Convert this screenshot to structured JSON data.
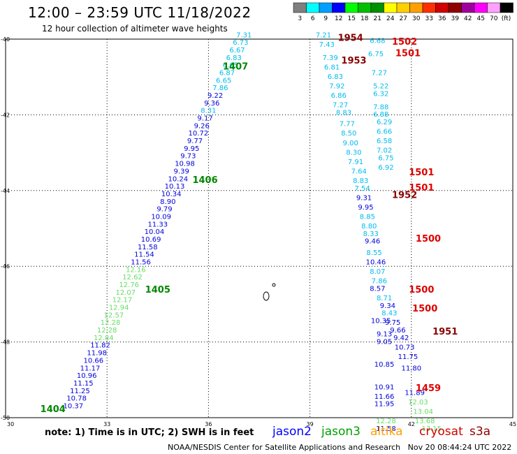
{
  "title": "12:00 – 23:59 UTC 11/18/2022",
  "subtitle": "12 hour collection of altimeter wave heights",
  "note": "note: 1) Time is in UTC; 2) SWH is in feet",
  "credit": "NOAA/NESDIS Center for Satellite Applications and Research   Nov 20 08:44:24 UTC 2022",
  "colorbar": {
    "unit": "(ft)",
    "bins": [
      {
        "label": "3",
        "color": "#7f7f7f"
      },
      {
        "label": "6",
        "color": "#00ffff"
      },
      {
        "label": "9",
        "color": "#00a0ff"
      },
      {
        "label": "12",
        "color": "#0000ff"
      },
      {
        "label": "15",
        "color": "#00ff00"
      },
      {
        "label": "18",
        "color": "#00c000"
      },
      {
        "label": "21",
        "color": "#009000"
      },
      {
        "label": "24",
        "color": "#ffff00"
      },
      {
        "label": "27",
        "color": "#ffd000"
      },
      {
        "label": "30",
        "color": "#ffa000"
      },
      {
        "label": "33",
        "color": "#ff3000"
      },
      {
        "label": "36",
        "color": "#d00000"
      },
      {
        "label": "39",
        "color": "#900000"
      },
      {
        "label": "42",
        "color": "#a000a0"
      },
      {
        "label": "45",
        "color": "#ff00ff"
      },
      {
        "label": "70",
        "color": "#ffa0ff"
      },
      {
        "label": "",
        "color": "#000000"
      }
    ]
  },
  "axes": {
    "lon_ticks": [
      "30",
      "33",
      "36",
      "39",
      "42",
      "45"
    ],
    "lat_ticks": [
      "-40",
      "-42",
      "-44",
      "-46",
      "-48",
      "-50"
    ],
    "lon_range": [
      30,
      45
    ],
    "lat_range": [
      -40,
      -50
    ]
  },
  "satellites": [
    {
      "name": "jason2",
      "color": "#0000ff"
    },
    {
      "name": "jason3",
      "color": "#00a000"
    },
    {
      "name": "altika",
      "color": "#ffa000"
    },
    {
      "name": "cryosat",
      "color": "#d00000"
    },
    {
      "name": "s3a",
      "color": "#900000"
    }
  ],
  "colors": {
    "c_cyan": "#00bbee",
    "c_blue": "#0000dd",
    "c_lgreen": "#66dd66",
    "c_green": "#008800",
    "c_red": "#dd0000",
    "c_dred": "#880000"
  },
  "chart_data": {
    "type": "scatter",
    "title": "12:00 – 23:59 UTC 11/18/2022",
    "xlim": [
      30,
      45
    ],
    "ylim": [
      -50,
      -40
    ],
    "grid": true,
    "points": [
      {
        "lon": 37.05,
        "lat": -39.95,
        "v": "7.31",
        "c": "c_cyan"
      },
      {
        "lon": 36.95,
        "lat": -40.15,
        "v": "6.73",
        "c": "c_cyan"
      },
      {
        "lon": 36.85,
        "lat": -40.35,
        "v": "6.67",
        "c": "c_cyan"
      },
      {
        "lon": 36.75,
        "lat": -40.55,
        "v": "6.83",
        "c": "c_cyan"
      },
      {
        "lon": 36.65,
        "lat": -40.75,
        "v": "6.65",
        "c": "c_cyan"
      },
      {
        "lon": 36.55,
        "lat": -40.95,
        "v": "6.87",
        "c": "c_cyan"
      },
      {
        "lon": 36.45,
        "lat": -41.15,
        "v": "6.65",
        "c": "c_cyan"
      },
      {
        "lon": 36.35,
        "lat": -41.35,
        "v": "7.86",
        "c": "c_cyan"
      },
      {
        "lon": 36.2,
        "lat": -41.55,
        "v": "9.22",
        "c": "c_blue"
      },
      {
        "lon": 36.1,
        "lat": -41.75,
        "v": "9.36",
        "c": "c_blue"
      },
      {
        "lon": 36.0,
        "lat": -41.95,
        "v": "8.31",
        "c": "c_cyan"
      },
      {
        "lon": 35.9,
        "lat": -42.15,
        "v": "9.17",
        "c": "c_blue"
      },
      {
        "lon": 35.8,
        "lat": -42.35,
        "v": "9.26",
        "c": "c_blue"
      },
      {
        "lon": 35.7,
        "lat": -42.55,
        "v": "10.72",
        "c": "c_blue"
      },
      {
        "lon": 35.6,
        "lat": -42.75,
        "v": "9.77",
        "c": "c_blue"
      },
      {
        "lon": 35.5,
        "lat": -42.95,
        "v": "9.95",
        "c": "c_blue"
      },
      {
        "lon": 35.4,
        "lat": -43.15,
        "v": "9.73",
        "c": "c_blue"
      },
      {
        "lon": 35.3,
        "lat": -43.35,
        "v": "10.98",
        "c": "c_blue"
      },
      {
        "lon": 35.2,
        "lat": -43.55,
        "v": "9.39",
        "c": "c_blue"
      },
      {
        "lon": 35.1,
        "lat": -43.75,
        "v": "10.24",
        "c": "c_blue"
      },
      {
        "lon": 35.0,
        "lat": -43.95,
        "v": "10.13",
        "c": "c_blue"
      },
      {
        "lon": 34.9,
        "lat": -44.15,
        "v": "10.34",
        "c": "c_blue"
      },
      {
        "lon": 34.8,
        "lat": -44.35,
        "v": "8.90",
        "c": "c_blue"
      },
      {
        "lon": 34.7,
        "lat": -44.55,
        "v": "9.79",
        "c": "c_blue"
      },
      {
        "lon": 34.6,
        "lat": -44.75,
        "v": "10.09",
        "c": "c_blue"
      },
      {
        "lon": 34.5,
        "lat": -44.95,
        "v": "11.33",
        "c": "c_blue"
      },
      {
        "lon": 34.4,
        "lat": -45.15,
        "v": "10.04",
        "c": "c_blue"
      },
      {
        "lon": 34.3,
        "lat": -45.35,
        "v": "10.69",
        "c": "c_blue"
      },
      {
        "lon": 34.2,
        "lat": -45.55,
        "v": "11.58",
        "c": "c_blue"
      },
      {
        "lon": 34.1,
        "lat": -45.75,
        "v": "11.54",
        "c": "c_blue"
      },
      {
        "lon": 34.0,
        "lat": -45.95,
        "v": "11.56",
        "c": "c_blue"
      },
      {
        "lon": 33.85,
        "lat": -46.15,
        "v": "12.16",
        "c": "c_lgreen"
      },
      {
        "lon": 33.75,
        "lat": -46.35,
        "v": "12.62",
        "c": "c_lgreen"
      },
      {
        "lon": 33.65,
        "lat": -46.55,
        "v": "12.76",
        "c": "c_lgreen"
      },
      {
        "lon": 33.55,
        "lat": -46.75,
        "v": "12.07",
        "c": "c_lgreen"
      },
      {
        "lon": 33.45,
        "lat": -46.95,
        "v": "12.17",
        "c": "c_lgreen"
      },
      {
        "lon": 33.35,
        "lat": -47.15,
        "v": "12.94",
        "c": "c_lgreen"
      },
      {
        "lon": 33.2,
        "lat": -47.35,
        "v": "12.57",
        "c": "c_lgreen"
      },
      {
        "lon": 33.1,
        "lat": -47.55,
        "v": "12.28",
        "c": "c_lgreen"
      },
      {
        "lon": 33.0,
        "lat": -47.75,
        "v": "12.28",
        "c": "c_lgreen"
      },
      {
        "lon": 32.9,
        "lat": -47.95,
        "v": "12.84",
        "c": "c_lgreen"
      },
      {
        "lon": 32.8,
        "lat": -48.15,
        "v": "11.82",
        "c": "c_blue"
      },
      {
        "lon": 32.7,
        "lat": -48.35,
        "v": "11.98",
        "c": "c_blue"
      },
      {
        "lon": 32.6,
        "lat": -48.55,
        "v": "10.66",
        "c": "c_blue"
      },
      {
        "lon": 32.5,
        "lat": -48.75,
        "v": "11.17",
        "c": "c_blue"
      },
      {
        "lon": 32.4,
        "lat": -48.95,
        "v": "10.96",
        "c": "c_blue"
      },
      {
        "lon": 32.3,
        "lat": -49.15,
        "v": "11.15",
        "c": "c_blue"
      },
      {
        "lon": 32.2,
        "lat": -49.35,
        "v": "11.25",
        "c": "c_blue"
      },
      {
        "lon": 32.1,
        "lat": -49.55,
        "v": "10.78",
        "c": "c_blue"
      },
      {
        "lon": 32.0,
        "lat": -49.75,
        "v": "10.37",
        "c": "c_blue"
      },
      {
        "lon": 39.4,
        "lat": -39.95,
        "v": "7.21",
        "c": "c_cyan"
      },
      {
        "lon": 39.5,
        "lat": -40.2,
        "v": "7.43",
        "c": "c_cyan"
      },
      {
        "lon": 39.6,
        "lat": -40.55,
        "v": "7.39",
        "c": "c_cyan"
      },
      {
        "lon": 39.65,
        "lat": -40.8,
        "v": "6.81",
        "c": "c_cyan"
      },
      {
        "lon": 39.75,
        "lat": -41.05,
        "v": "6.83",
        "c": "c_cyan"
      },
      {
        "lon": 39.8,
        "lat": -41.3,
        "v": "7.92",
        "c": "c_cyan"
      },
      {
        "lon": 39.85,
        "lat": -41.55,
        "v": "6.86",
        "c": "c_cyan"
      },
      {
        "lon": 39.9,
        "lat": -41.8,
        "v": "7.27",
        "c": "c_cyan"
      },
      {
        "lon": 40.0,
        "lat": -42.0,
        "v": "8.83",
        "c": "c_cyan"
      },
      {
        "lon": 40.1,
        "lat": -42.3,
        "v": "7.77",
        "c": "c_cyan"
      },
      {
        "lon": 40.15,
        "lat": -42.55,
        "v": "8.50",
        "c": "c_cyan"
      },
      {
        "lon": 40.2,
        "lat": -42.8,
        "v": "9.00",
        "c": "c_cyan"
      },
      {
        "lon": 40.3,
        "lat": -43.05,
        "v": "8.30",
        "c": "c_cyan"
      },
      {
        "lon": 40.35,
        "lat": -43.3,
        "v": "7.91",
        "c": "c_cyan"
      },
      {
        "lon": 40.45,
        "lat": -43.55,
        "v": "7.64",
        "c": "c_cyan"
      },
      {
        "lon": 40.5,
        "lat": -43.8,
        "v": "8.83",
        "c": "c_cyan"
      },
      {
        "lon": 40.55,
        "lat": -44.0,
        "v": "7.54",
        "c": "c_cyan"
      },
      {
        "lon": 40.6,
        "lat": -44.25,
        "v": "9.31",
        "c": "c_blue"
      },
      {
        "lon": 40.65,
        "lat": -44.5,
        "v": "9.95",
        "c": "c_blue"
      },
      {
        "lon": 40.7,
        "lat": -44.75,
        "v": "8.85",
        "c": "c_cyan"
      },
      {
        "lon": 40.75,
        "lat": -45.0,
        "v": "8.80",
        "c": "c_cyan"
      },
      {
        "lon": 40.8,
        "lat": -45.2,
        "v": "8.33",
        "c": "c_cyan"
      },
      {
        "lon": 40.85,
        "lat": -45.4,
        "v": "9.46",
        "c": "c_blue"
      },
      {
        "lon": 40.9,
        "lat": -45.7,
        "v": "8.55",
        "c": "c_cyan"
      },
      {
        "lon": 40.95,
        "lat": -45.95,
        "v": "10.46",
        "c": "c_blue"
      },
      {
        "lon": 41.0,
        "lat": -46.2,
        "v": "8.07",
        "c": "c_cyan"
      },
      {
        "lon": 41.05,
        "lat": -46.45,
        "v": "7.86",
        "c": "c_cyan"
      },
      {
        "lon": 41.0,
        "lat": -46.65,
        "v": "8.57",
        "c": "c_blue"
      },
      {
        "lon": 41.2,
        "lat": -46.9,
        "v": "8.71",
        "c": "c_cyan"
      },
      {
        "lon": 41.3,
        "lat": -47.1,
        "v": "9.34",
        "c": "c_blue"
      },
      {
        "lon": 41.35,
        "lat": -47.3,
        "v": "8.43",
        "c": "c_cyan"
      },
      {
        "lon": 41.45,
        "lat": -47.55,
        "v": "9.75",
        "c": "c_blue"
      },
      {
        "lon": 41.1,
        "lat": -47.5,
        "v": "10.35",
        "c": "c_blue"
      },
      {
        "lon": 41.6,
        "lat": -47.75,
        "v": "9.66",
        "c": "c_blue"
      },
      {
        "lon": 41.2,
        "lat": -47.85,
        "v": "9.13",
        "c": "c_blue"
      },
      {
        "lon": 41.7,
        "lat": -47.95,
        "v": "9.42",
        "c": "c_blue"
      },
      {
        "lon": 41.2,
        "lat": -48.05,
        "v": "9.05",
        "c": "c_blue"
      },
      {
        "lon": 41.8,
        "lat": -48.2,
        "v": "10.73",
        "c": "c_blue"
      },
      {
        "lon": 41.2,
        "lat": -48.65,
        "v": "10.85",
        "c": "c_blue"
      },
      {
        "lon": 41.9,
        "lat": -48.45,
        "v": "11.75",
        "c": "c_blue"
      },
      {
        "lon": 42.0,
        "lat": -48.75,
        "v": "11.80",
        "c": "c_blue"
      },
      {
        "lon": 41.2,
        "lat": -49.25,
        "v": "10.91",
        "c": "c_blue"
      },
      {
        "lon": 42.1,
        "lat": -49.4,
        "v": "11.89",
        "c": "c_blue"
      },
      {
        "lon": 41.2,
        "lat": -49.5,
        "v": "11.66",
        "c": "c_blue"
      },
      {
        "lon": 41.2,
        "lat": -49.7,
        "v": "11.95",
        "c": "c_blue"
      },
      {
        "lon": 42.2,
        "lat": -49.65,
        "v": "12.03",
        "c": "c_lgreen"
      },
      {
        "lon": 42.35,
        "lat": -49.9,
        "v": "13.04",
        "c": "c_lgreen"
      },
      {
        "lon": 41.25,
        "lat": -50.15,
        "v": "12.28",
        "c": "c_lgreen"
      },
      {
        "lon": 42.4,
        "lat": -50.15,
        "v": "13.68",
        "c": "c_lgreen"
      },
      {
        "lon": 41.25,
        "lat": -50.35,
        "v": "11.58",
        "c": "c_blue"
      },
      {
        "lon": 42.6,
        "lat": -50.35,
        "v": "13.15",
        "c": "c_lgreen"
      },
      {
        "lon": 41.0,
        "lat": -40.1,
        "v": "6.68",
        "c": "c_cyan"
      },
      {
        "lon": 40.95,
        "lat": -40.45,
        "v": "6.75",
        "c": "c_cyan"
      },
      {
        "lon": 41.05,
        "lat": -40.95,
        "v": "7.27",
        "c": "c_cyan"
      },
      {
        "lon": 41.1,
        "lat": -41.3,
        "v": "5.22",
        "c": "c_cyan"
      },
      {
        "lon": 41.1,
        "lat": -41.5,
        "v": "6.32",
        "c": "c_cyan"
      },
      {
        "lon": 41.1,
        "lat": -41.85,
        "v": "7.88",
        "c": "c_cyan"
      },
      {
        "lon": 41.1,
        "lat": -42.05,
        "v": "6.88",
        "c": "c_cyan"
      },
      {
        "lon": 41.2,
        "lat": -42.25,
        "v": "6.29",
        "c": "c_cyan"
      },
      {
        "lon": 41.2,
        "lat": -42.5,
        "v": "6.66",
        "c": "c_cyan"
      },
      {
        "lon": 41.2,
        "lat": -42.75,
        "v": "6.58",
        "c": "c_cyan"
      },
      {
        "lon": 41.2,
        "lat": -43.0,
        "v": "7.02",
        "c": "c_cyan"
      },
      {
        "lon": 41.25,
        "lat": -43.2,
        "v": "6.75",
        "c": "c_cyan"
      },
      {
        "lon": 41.25,
        "lat": -43.45,
        "v": "6.92",
        "c": "c_cyan"
      }
    ],
    "track_labels": [
      {
        "lon": 36.8,
        "lat": -40.8,
        "v": "1407",
        "c": "c_green"
      },
      {
        "lon": 35.9,
        "lat": -43.8,
        "v": "1406",
        "c": "c_green"
      },
      {
        "lon": 34.5,
        "lat": -46.7,
        "v": "1405",
        "c": "c_green"
      },
      {
        "lon": 31.4,
        "lat": -49.85,
        "v": "1404",
        "c": "c_green"
      },
      {
        "lon": 40.2,
        "lat": -40.05,
        "v": "1954",
        "c": "c_dred"
      },
      {
        "lon": 40.3,
        "lat": -40.65,
        "v": "1953",
        "c": "c_dred"
      },
      {
        "lon": 41.8,
        "lat": -44.2,
        "v": "1952",
        "c": "c_dred"
      },
      {
        "lon": 43.0,
        "lat": -47.8,
        "v": "1951",
        "c": "c_dred"
      },
      {
        "lon": 41.8,
        "lat": -40.15,
        "v": "1502",
        "c": "c_red"
      },
      {
        "lon": 41.9,
        "lat": -40.45,
        "v": "1501",
        "c": "c_red"
      },
      {
        "lon": 42.3,
        "lat": -43.6,
        "v": "1501",
        "c": "c_red"
      },
      {
        "lon": 42.3,
        "lat": -44.0,
        "v": "1501",
        "c": "c_red"
      },
      {
        "lon": 42.5,
        "lat": -45.35,
        "v": "1500",
        "c": "c_red"
      },
      {
        "lon": 42.3,
        "lat": -46.7,
        "v": "1500",
        "c": "c_red"
      },
      {
        "lon": 42.4,
        "lat": -47.2,
        "v": "1500",
        "c": "c_red"
      },
      {
        "lon": 42.5,
        "lat": -49.3,
        "v": "1459",
        "c": "c_red"
      }
    ]
  }
}
